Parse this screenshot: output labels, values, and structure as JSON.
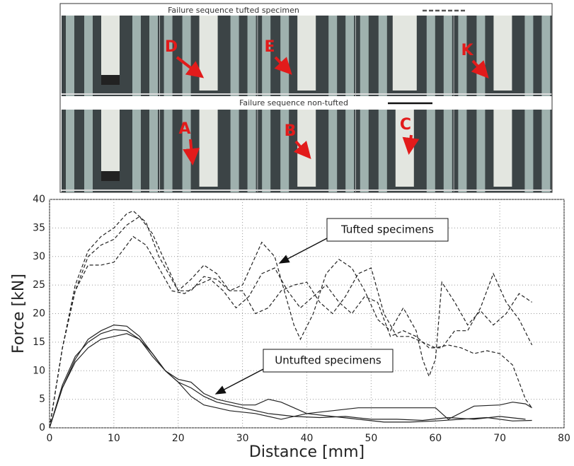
{
  "photo_panel": {
    "top_title": "Failure sequence tufted specimen",
    "bottom_title": "Failure sequence non-tufted",
    "top_labels": [
      "D",
      "E",
      "K"
    ],
    "bottom_labels": [
      "A",
      "B",
      "C"
    ]
  },
  "chart_data": {
    "type": "line",
    "x_label": "Distance [mm]",
    "y_label": "Force [kN]",
    "xlim": [
      0,
      80
    ],
    "xticks": [
      0,
      10,
      20,
      30,
      40,
      50,
      60,
      70,
      80
    ],
    "ylim": [
      0,
      40
    ],
    "yticks": [
      0,
      5,
      10,
      15,
      20,
      25,
      30,
      35,
      40
    ],
    "grid": true,
    "annotations": [
      "Tufted specimens",
      "Untufted specimens"
    ],
    "series": [
      {
        "color": "#222",
        "linestyle": "dashed",
        "x": [
          0,
          2,
          4,
          6,
          8,
          10,
          12,
          13,
          15,
          17,
          20,
          22,
          24,
          26,
          28,
          30,
          32,
          34,
          36,
          38,
          40,
          42,
          44,
          46,
          48,
          50,
          52,
          54,
          56,
          58,
          60,
          62,
          64,
          66,
          68,
          70,
          72,
          74,
          75
        ],
        "values": [
          0,
          14,
          25,
          31,
          33.5,
          35,
          37.5,
          38,
          36,
          30,
          24,
          26,
          28.5,
          27,
          24,
          24,
          20,
          21,
          24,
          25,
          25.5,
          22,
          20,
          23,
          27,
          28,
          20,
          16,
          16,
          15,
          14,
          14.5,
          14,
          13,
          13.5,
          13,
          11,
          5,
          3.5
        ]
      },
      {
        "color": "#222",
        "linestyle": "dashed",
        "x": [
          0,
          2,
          4,
          6,
          8,
          10,
          12,
          14,
          16,
          18,
          20,
          22,
          24,
          26,
          28,
          30,
          32,
          33,
          35,
          37,
          38,
          39,
          41,
          43,
          45,
          47,
          49,
          51,
          53,
          55,
          57,
          58,
          59,
          60,
          61,
          63,
          65,
          67,
          69,
          71,
          73,
          75
        ],
        "values": [
          0,
          14,
          24,
          30,
          32,
          33,
          35.5,
          37,
          34,
          29,
          24,
          24,
          26.5,
          26,
          24,
          25,
          30,
          32.5,
          30,
          22,
          18,
          15.5,
          20,
          27,
          29.5,
          28,
          24,
          19,
          17,
          21,
          17,
          12,
          9,
          12,
          25.5,
          22,
          18,
          20.5,
          18,
          20,
          23.5,
          22
        ]
      },
      {
        "color": "#222",
        "linestyle": "dashed",
        "x": [
          0,
          2,
          4,
          6,
          8,
          10,
          12,
          13,
          15,
          17,
          19,
          21,
          23,
          25,
          27,
          29,
          31,
          33,
          35,
          37,
          39,
          41,
          43,
          45,
          47,
          49,
          51,
          53,
          55,
          57,
          59,
          61,
          63,
          65,
          67,
          69,
          71,
          73,
          75
        ],
        "values": [
          0,
          14,
          24,
          28.5,
          28.5,
          29,
          32,
          33.5,
          32,
          28,
          24,
          23.5,
          25,
          26,
          24,
          21,
          23,
          27,
          28,
          24,
          21,
          23,
          25,
          22,
          20,
          23,
          22,
          16,
          17,
          16,
          14,
          14,
          17,
          17,
          21,
          27,
          22,
          19,
          14.5
        ]
      },
      {
        "color": "#222",
        "linestyle": "solid",
        "x": [
          0,
          2,
          4,
          6,
          8,
          10,
          12,
          14,
          16,
          18,
          20,
          22,
          24,
          26,
          28,
          30,
          32,
          34,
          36,
          38,
          40,
          44,
          48,
          52,
          56,
          60,
          62,
          66,
          70,
          72,
          74,
          75
        ],
        "values": [
          0,
          7,
          12,
          15.5,
          17,
          18,
          17.8,
          16,
          13,
          10,
          8.5,
          8,
          6,
          5,
          4.5,
          4,
          4,
          5,
          4.5,
          3.5,
          2.5,
          3,
          3.5,
          3.5,
          3.5,
          3.5,
          1.5,
          3.8,
          4,
          4.5,
          4.2,
          3.5
        ]
      },
      {
        "color": "#222",
        "linestyle": "solid",
        "x": [
          0,
          2,
          4,
          6,
          8,
          10,
          12,
          14,
          16,
          18,
          20,
          22,
          24,
          26,
          28,
          30,
          34,
          38,
          42,
          46,
          50,
          54,
          58,
          62,
          66,
          70,
          74
        ],
        "values": [
          0,
          7.5,
          12.5,
          15,
          16.5,
          17.2,
          17,
          15.5,
          13,
          10,
          8,
          7,
          5.5,
          4.5,
          4,
          3.5,
          2.5,
          2,
          1.8,
          2,
          1.5,
          1.5,
          1.3,
          1.8,
          1.5,
          2,
          1.5
        ]
      },
      {
        "color": "#222",
        "linestyle": "solid",
        "x": [
          0,
          2,
          4,
          6,
          8,
          10,
          12,
          14,
          16,
          18,
          20,
          22,
          24,
          26,
          28,
          32,
          36,
          40,
          44,
          48,
          52,
          56,
          60,
          64,
          68,
          72,
          75
        ],
        "values": [
          0,
          7,
          11.5,
          14,
          15.5,
          16,
          16.5,
          15.5,
          12.5,
          10,
          8,
          5.5,
          4,
          3.5,
          3,
          2.5,
          1.5,
          2.5,
          2,
          1.5,
          1,
          1,
          1.2,
          1.5,
          1.8,
          1.2,
          1.3
        ]
      }
    ]
  }
}
